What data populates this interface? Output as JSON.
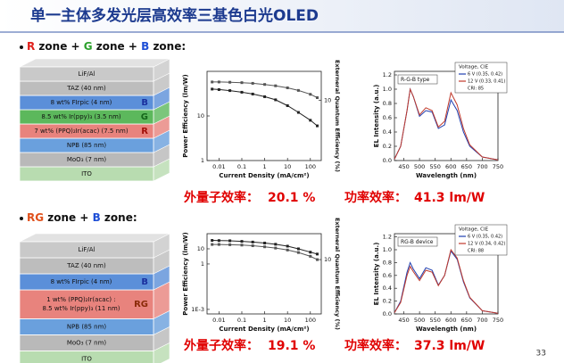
{
  "title": "单一主体多发光层高效率三基色白光OLED",
  "page_number": "33",
  "sections": [
    {
      "heading": [
        {
          "text": "R",
          "color": "#e0201b"
        },
        {
          "text": " zone + ",
          "color": "#111111"
        },
        {
          "text": "G",
          "color": "#2ca02c"
        },
        {
          "text": " zone + ",
          "color": "#111111"
        },
        {
          "text": "B",
          "color": "#1f4fd6"
        },
        {
          "text": " zone:",
          "color": "#111111"
        }
      ],
      "stack": [
        {
          "lines": [
            "LiF/Al"
          ],
          "color": "#c9c9c9"
        },
        {
          "lines": [
            "TAZ (40 nm)"
          ],
          "color": "#bdbdbd"
        },
        {
          "lines": [
            "8 wt% FIrpic (4 nm)"
          ],
          "tag": "B",
          "color": "#5b8fd9",
          "tag_color": "#1a2f9e"
        },
        {
          "lines": [
            "8.5 wt% Ir(ppy)₃ (3.5 nm)"
          ],
          "tag": "G",
          "color": "#5cb85c",
          "tag_color": "#14651a"
        },
        {
          "lines": [
            "7 wt% (PPQ)₂Ir(acac) (7.5 nm)"
          ],
          "tag": "R",
          "color": "#e8837d",
          "tag_color": "#a3100a"
        },
        {
          "lines": [
            "NPB (85 nm)"
          ],
          "color": "#6aa0dd"
        },
        {
          "lines": [
            "MoO₃ (7 nm)"
          ],
          "color": "#b9b9b9"
        },
        {
          "lines": [
            "ITO"
          ],
          "color": "#b8dcb0"
        }
      ],
      "plots": [
        {
          "type": "efficiency",
          "y_label": "Power Efficiency (lm/W)",
          "y2_label": "Externeral Quantum Efficiency (%)",
          "x_label": "Current Density (mA/cm²)",
          "xlog": true,
          "xlim": [
            0.003,
            300
          ],
          "xticks": [
            0.01,
            0.1,
            1,
            10,
            100
          ],
          "ylog": true,
          "ylim": [
            1,
            100
          ],
          "yticks": [
            1,
            10
          ],
          "y2log": true,
          "y2lim": [
            1,
            30
          ],
          "y2ticks": [
            10
          ],
          "x": [
            0.005,
            0.01,
            0.03,
            0.1,
            0.3,
            1,
            3,
            10,
            30,
            100,
            200
          ],
          "series": [
            {
              "color": "#222222",
              "values": [
                40,
                39,
                37,
                34,
                31,
                27,
                23,
                17,
                12,
                8,
                6
              ]
            },
            {
              "color": "#555555",
              "axis": "y2",
              "values": [
                20,
                20,
                19.8,
                19.5,
                19,
                18.2,
                17.3,
                16,
                14.5,
                12.5,
                11
              ]
            }
          ]
        },
        {
          "type": "spectrum",
          "y_label": "EL Intensity (a.u.)",
          "x_label": "Wavelength (nm)",
          "annotation": "R-G-B type",
          "legend_title": "Voltage, CIE",
          "legend_note": "CRI: 85",
          "xlim": [
            420,
            750
          ],
          "xticks": [
            450,
            500,
            550,
            600,
            650,
            700,
            750
          ],
          "ylim": [
            0,
            1.25
          ],
          "yticks": [
            {
              "value": 0,
              "label": "0.0"
            },
            {
              "value": 0.2,
              "label": "0.2"
            },
            {
              "value": 0.4,
              "label": "0.4"
            },
            {
              "value": 0.6,
              "label": "0.6"
            },
            {
              "value": 0.8,
              "label": "0.8"
            },
            {
              "value": 1,
              "label": "1.0"
            },
            {
              "value": 1.2,
              "label": "1.2"
            }
          ],
          "x": [
            420,
            440,
            460,
            470,
            480,
            500,
            520,
            540,
            560,
            580,
            600,
            620,
            640,
            660,
            700,
            750
          ],
          "series": [
            {
              "name": "6 V (0.35, 0.42)",
              "color": "#1f3fb0",
              "values": [
                0.02,
                0.2,
                0.7,
                1.0,
                0.9,
                0.62,
                0.7,
                0.68,
                0.45,
                0.5,
                0.85,
                0.7,
                0.4,
                0.2,
                0.05,
                0.01
              ]
            },
            {
              "name": "12 V (0.33, 0.41)",
              "color": "#c0392b",
              "values": [
                0.02,
                0.2,
                0.7,
                1.0,
                0.9,
                0.64,
                0.74,
                0.7,
                0.47,
                0.55,
                0.95,
                0.78,
                0.45,
                0.22,
                0.05,
                0.01
              ]
            }
          ]
        }
      ],
      "summary": {
        "eqe_label": "外量子效率：",
        "eqe": "20.1 %",
        "pe_label": "功率效率：",
        "pe": "41.3 lm/W"
      }
    },
    {
      "heading": [
        {
          "text": "RG",
          "color": "#e0501b"
        },
        {
          "text": " zone + ",
          "color": "#111111"
        },
        {
          "text": "B",
          "color": "#1f4fd6"
        },
        {
          "text": " zone:",
          "color": "#111111"
        }
      ],
      "stack": [
        {
          "lines": [
            "LiF/Al"
          ],
          "color": "#c9c9c9"
        },
        {
          "lines": [
            "TAZ (40 nm)"
          ],
          "color": "#bdbdbd"
        },
        {
          "lines": [
            "8 wt% FIrpic (4 nm)"
          ],
          "tag": "B",
          "color": "#5b8fd9",
          "tag_color": "#1a2f9e"
        },
        {
          "lines": [
            "1 wt% (PPQ)₂Ir(acac) :",
            "8.5 wt% Ir(ppy)₃ (11 nm)"
          ],
          "tag": "RG",
          "color": "#e8837d",
          "tag_color": "#8a2a08"
        },
        {
          "lines": [
            "NPB (85 nm)"
          ],
          "color": "#6aa0dd"
        },
        {
          "lines": [
            "MoO₃ (7 nm)"
          ],
          "color": "#b9b9b9"
        },
        {
          "lines": [
            "ITO"
          ],
          "color": "#b8dcb0"
        }
      ],
      "plots": [
        {
          "type": "efficiency",
          "y_label": "Power Efficiency (lm/W)",
          "y2_label": "Externeral Quantum Efficiency (%)",
          "x_label": "Current Density (mA/cm²)",
          "xlog": true,
          "xlim": [
            0.003,
            300
          ],
          "xticks": [
            0.01,
            0.1,
            1,
            10,
            100
          ],
          "ylog": true,
          "ylim": [
            0.0005,
            100
          ],
          "yticks": [
            {
              "value": 0.001,
              "label": "1E-3"
            },
            1,
            10
          ],
          "y2log": true,
          "y2lim": [
            1,
            30
          ],
          "y2ticks": [
            10
          ],
          "x": [
            0.005,
            0.01,
            0.03,
            0.1,
            0.3,
            1,
            3,
            10,
            30,
            100,
            200
          ],
          "series": [
            {
              "color": "#222222",
              "values": [
                36,
                35,
                34,
                31,
                28,
                24,
                20,
                15,
                10,
                6,
                4.5
              ]
            },
            {
              "color": "#555555",
              "axis": "y2",
              "values": [
                19,
                19,
                18.8,
                18.5,
                18,
                17.2,
                16.3,
                15,
                13.5,
                11.5,
                10
              ]
            }
          ]
        },
        {
          "type": "spectrum",
          "y_label": "EL Intensity (a.u.)",
          "x_label": "Wavelength (nm)",
          "annotation": "RG-B device",
          "legend_title": "Voltage, CIE",
          "legend_note": "CRI: 88",
          "xlim": [
            420,
            750
          ],
          "xticks": [
            450,
            500,
            550,
            600,
            650,
            700,
            750
          ],
          "ylim": [
            0,
            1.25
          ],
          "yticks": [
            {
              "value": 0,
              "label": "0.0"
            },
            {
              "value": 0.2,
              "label": "0.2"
            },
            {
              "value": 0.4,
              "label": "0.4"
            },
            {
              "value": 0.6,
              "label": "0.6"
            },
            {
              "value": 0.8,
              "label": "0.8"
            },
            {
              "value": 1,
              "label": "1.0"
            },
            {
              "value": 1.2,
              "label": "1.2"
            }
          ],
          "x": [
            420,
            440,
            460,
            470,
            480,
            500,
            520,
            540,
            560,
            580,
            600,
            620,
            640,
            660,
            700,
            750
          ],
          "series": [
            {
              "name": "6 V (0.35, 0.42)",
              "color": "#1f3fb0",
              "values": [
                0.02,
                0.2,
                0.65,
                0.8,
                0.7,
                0.55,
                0.72,
                0.68,
                0.45,
                0.6,
                0.98,
                0.85,
                0.5,
                0.25,
                0.05,
                0.01
              ]
            },
            {
              "name": "12 V (0.34, 0.42)",
              "color": "#c0392b",
              "values": [
                0.02,
                0.18,
                0.6,
                0.74,
                0.66,
                0.52,
                0.68,
                0.65,
                0.44,
                0.6,
                1.0,
                0.87,
                0.52,
                0.26,
                0.05,
                0.01
              ]
            }
          ]
        }
      ],
      "summary": {
        "eqe_label": "外量子效率：",
        "eqe": "19.1 %",
        "pe_label": "功率效率：",
        "pe": "37.3 lm/W"
      }
    }
  ]
}
